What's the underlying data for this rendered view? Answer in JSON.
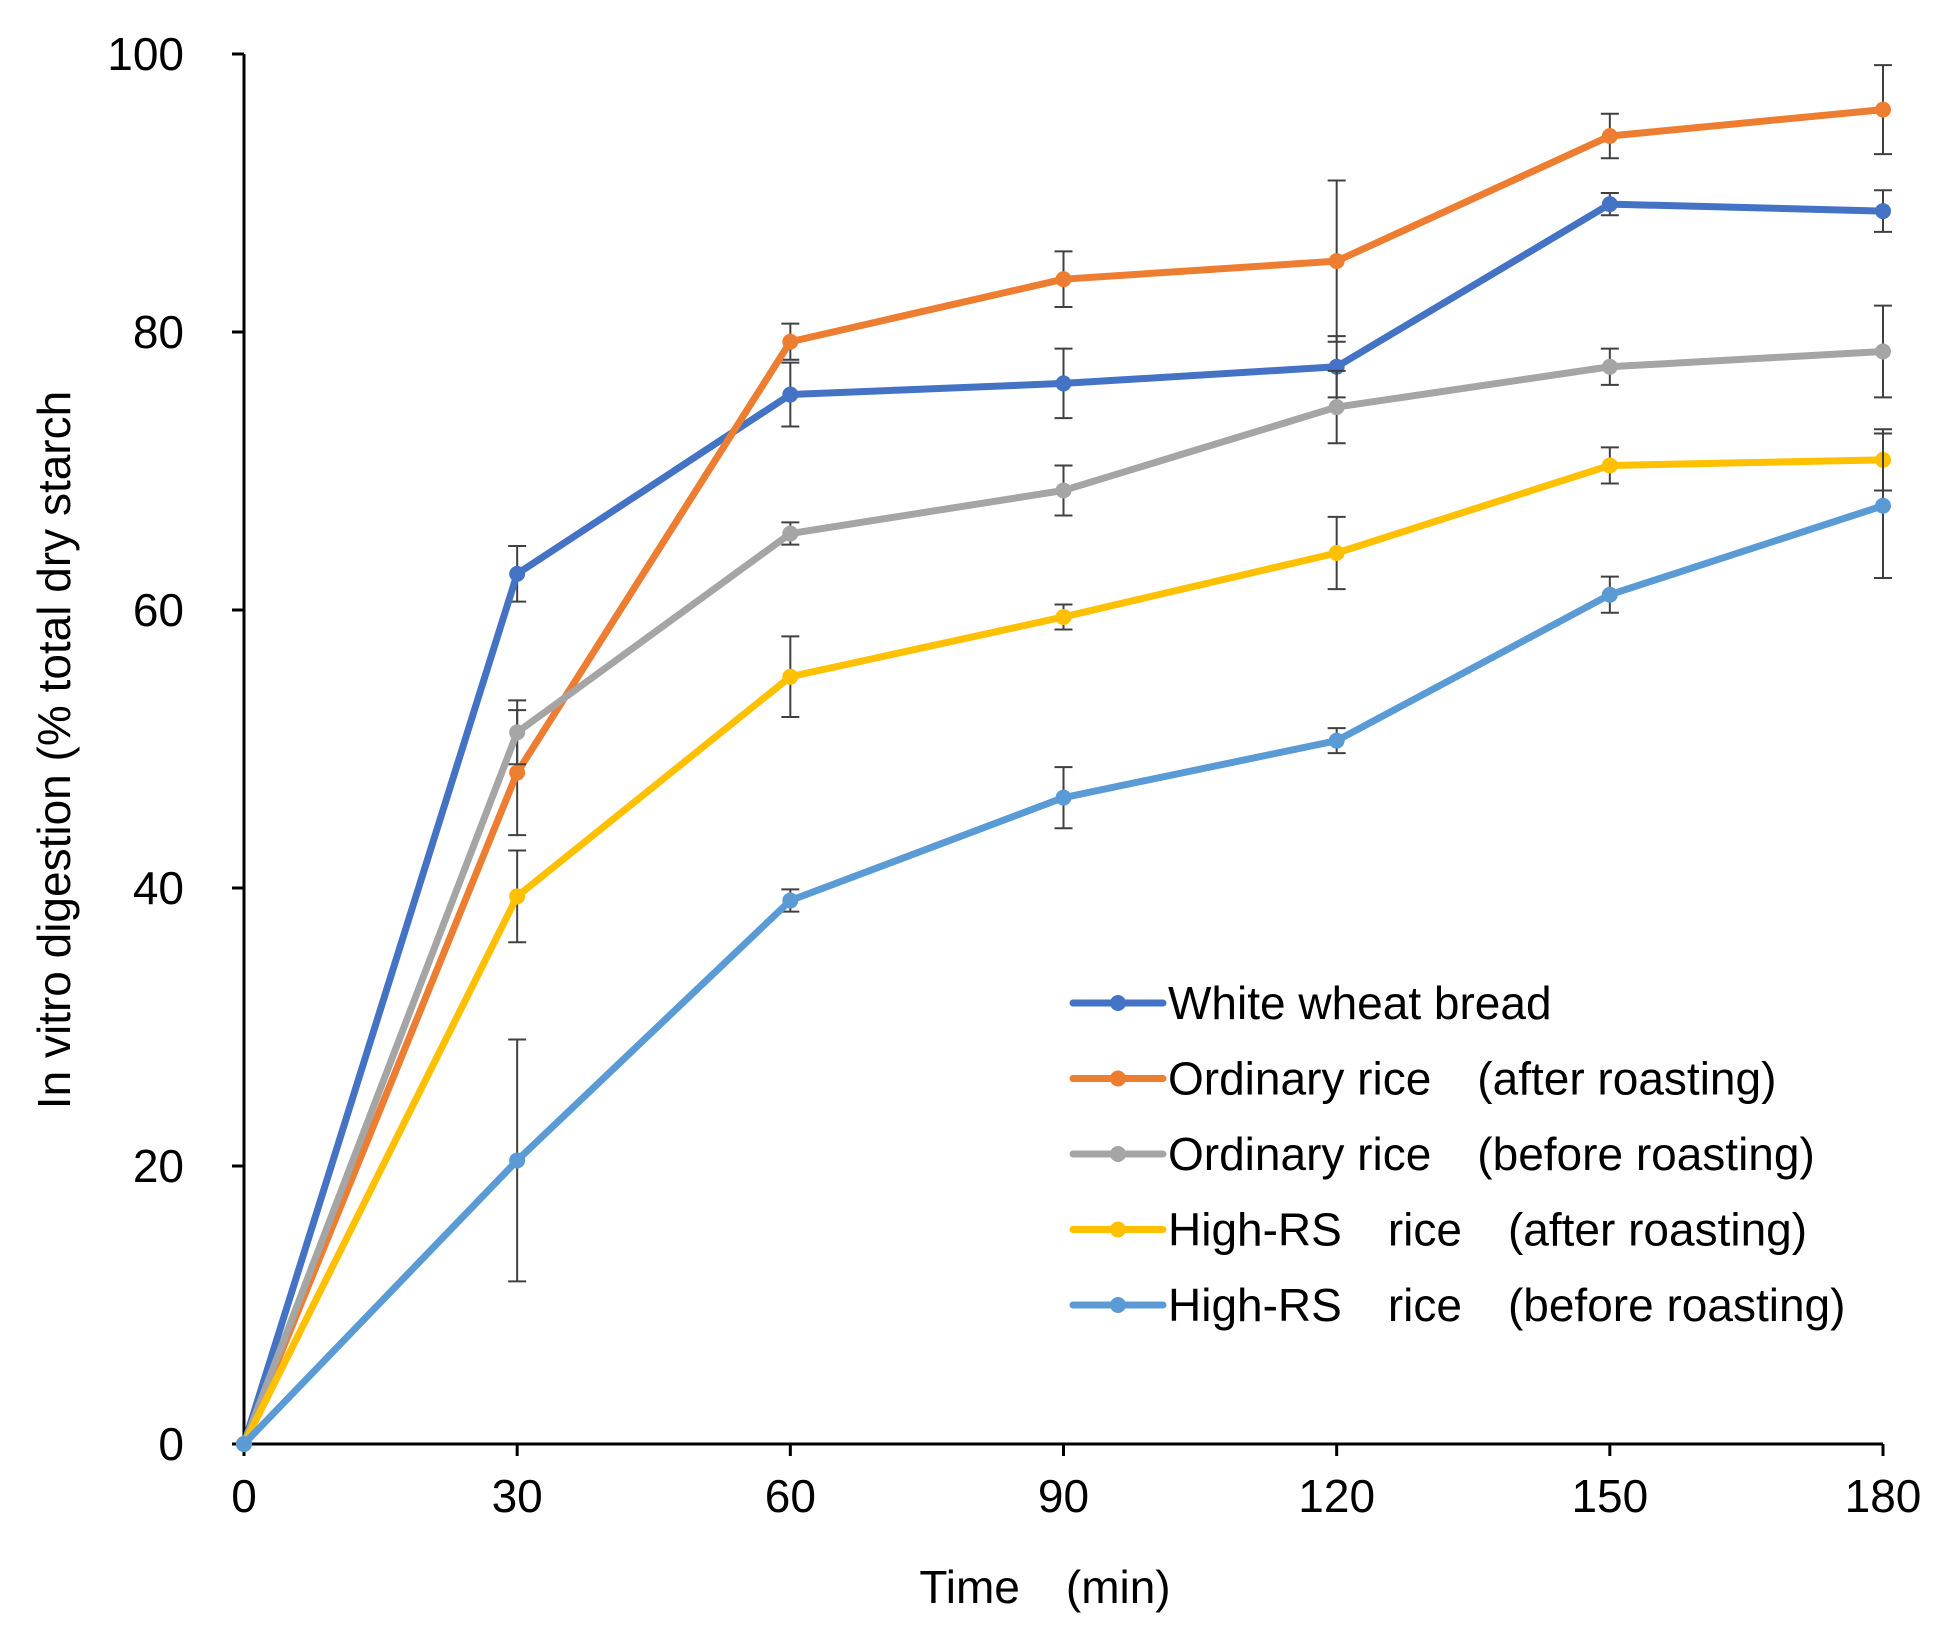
{
  "chart_data": {
    "type": "line",
    "title": "",
    "xlabel": "Time　(min)",
    "ylabel": "In vitro digestion (% total dry starch",
    "x": [
      0,
      30,
      60,
      90,
      120,
      150,
      180
    ],
    "xlim": [
      0,
      180
    ],
    "ylim": [
      0,
      100
    ],
    "xticks": [
      0,
      30,
      60,
      90,
      120,
      150,
      180
    ],
    "yticks": [
      0,
      20,
      40,
      60,
      80,
      100
    ],
    "grid": false,
    "legend_position": "bottom-right",
    "series": [
      {
        "name": "White wheat bread",
        "color": "#4472C4",
        "values": [
          0,
          62.6,
          75.5,
          76.3,
          77.5,
          89.2,
          88.7
        ],
        "errors": [
          0,
          2.0,
          2.3,
          2.5,
          2.2,
          0.8,
          1.5
        ]
      },
      {
        "name": "Ordinary rice　(after roasting)",
        "color": "#ED7D31",
        "values": [
          0,
          48.3,
          79.3,
          83.8,
          85.1,
          94.1,
          96.0
        ],
        "errors": [
          0,
          4.5,
          1.3,
          2.0,
          5.8,
          1.6,
          3.2
        ]
      },
      {
        "name": "Ordinary  rice　(before roasting)",
        "color": "#A5A5A5",
        "values": [
          0,
          51.2,
          65.5,
          68.6,
          74.6,
          77.5,
          78.6
        ],
        "errors": [
          0,
          2.3,
          0.8,
          1.8,
          2.6,
          1.3,
          3.3
        ]
      },
      {
        "name": "High-RS　rice　(after roasting)",
        "color": "#FFC000",
        "values": [
          0,
          39.4,
          55.2,
          59.5,
          64.1,
          70.4,
          70.8
        ],
        "errors": [
          0,
          3.3,
          2.9,
          0.9,
          2.6,
          1.3,
          2.2
        ]
      },
      {
        "name": "High-RS　rice　(before roasting)",
        "color": "#5B9BD5",
        "values": [
          0,
          20.4,
          39.1,
          46.5,
          50.6,
          61.1,
          67.5
        ],
        "errors": [
          0,
          8.7,
          0.8,
          2.2,
          0.9,
          1.3,
          5.2
        ]
      }
    ]
  }
}
